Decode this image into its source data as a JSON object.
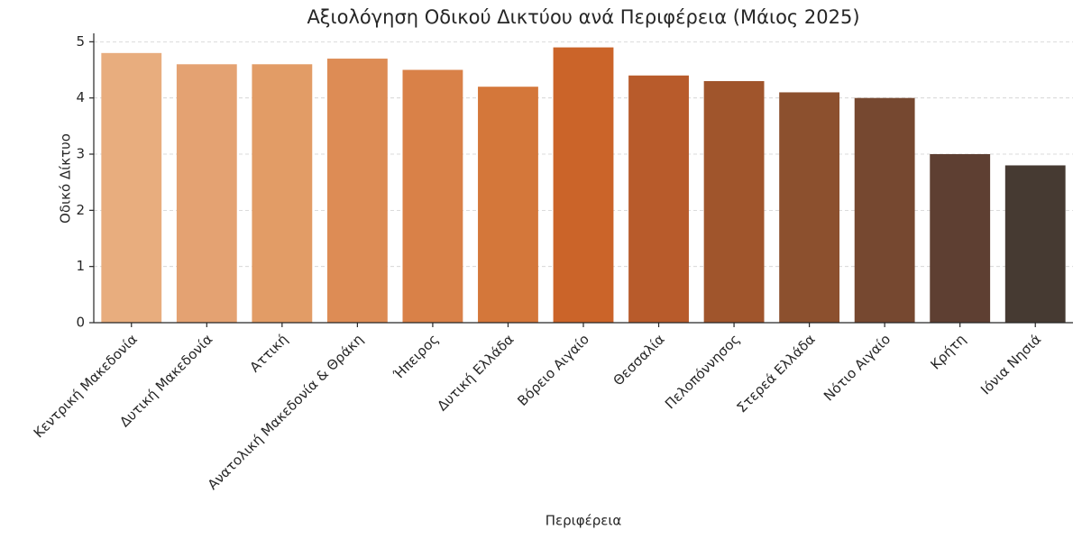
{
  "chart_data": {
    "type": "bar",
    "title": "Αξιολόγηση Οδικού Δικτύου ανά Περιφέρεια (Μάιος 2025)",
    "x_label": "Περιφέρεια",
    "y_label": "Οδικό Δίκτυο",
    "categories": [
      "Κεντρική Μακεδονία",
      "Δυτική Μακεδονία",
      "Αττική",
      "Ανατολική Μακεδονία & Θράκη",
      "Ήπειρος",
      "Δυτική Ελλάδα",
      "Βόρειο Αιγαίο",
      "Θεσσαλία",
      "Πελοπόννησος",
      "Στερεά Ελλάδα",
      "Νότιο Αιγαίο",
      "Κρήτη",
      "Ιόνια Νησιά"
    ],
    "values": [
      4.8,
      4.6,
      4.6,
      4.7,
      4.5,
      4.2,
      4.9,
      4.4,
      4.3,
      4.1,
      4.0,
      3.0,
      2.8
    ],
    "colors": [
      "#e8ad7e",
      "#e4a272",
      "#e29c66",
      "#dd8c55",
      "#d98148",
      "#d4773a",
      "#cb6429",
      "#b85b2b",
      "#a0552c",
      "#8c502e",
      "#764830",
      "#5e3f32",
      "#463a32"
    ],
    "ylim": [
      0,
      5.15
    ],
    "yticks": [
      0,
      1,
      2,
      3,
      4,
      5
    ],
    "grid": true
  }
}
